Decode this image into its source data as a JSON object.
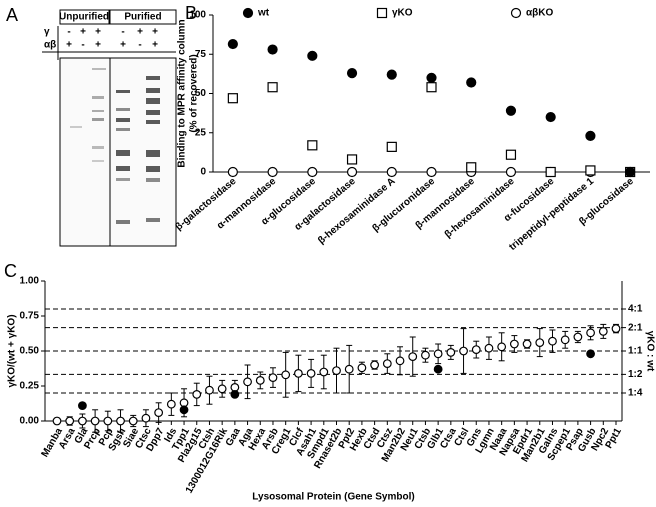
{
  "gel": {
    "label": "A",
    "groups": [
      "Unpurified",
      "Purified"
    ],
    "rows": [
      {
        "label": "γ",
        "signs": [
          "-",
          "+",
          "+",
          "-",
          "+",
          "+"
        ]
      },
      {
        "label": "αβ",
        "signs": [
          "+",
          "-",
          "+",
          "+",
          "-",
          "+"
        ]
      }
    ]
  },
  "chart_data": [
    {
      "type": "scatter",
      "label": "B",
      "ylabel": [
        "Binding to MPR affinity column",
        "(% of recovered)"
      ],
      "categories": [
        "β-galactosidase",
        "α-mannosidase",
        "α-glucosidase",
        "α-galactosidase",
        "β-hexosaminidase A",
        "β-glucuronidase",
        "β-mannosidase",
        "β-hexosaminidase",
        "α-fucosidase",
        "tripeptidyl-peptidase 1",
        "β-glucosidase"
      ],
      "series": [
        {
          "name": "wt",
          "color": "#000000",
          "marker": "circle-filled",
          "values": [
            81.5,
            78,
            74,
            63,
            62,
            60,
            57,
            39,
            35,
            23,
            0
          ]
        },
        {
          "name": "γKO",
          "color": "#000000",
          "marker": "square",
          "values": [
            47,
            54,
            17,
            8,
            16,
            54,
            3,
            11,
            0,
            1,
            0
          ]
        },
        {
          "name": "αβKO",
          "color": "#000000",
          "marker": "circle-open",
          "values": [
            0,
            0,
            0,
            0,
            0,
            0,
            0,
            0,
            0,
            0,
            0
          ]
        }
      ],
      "ylim": [
        0,
        100
      ],
      "yticks": [
        0,
        25,
        50,
        75,
        100
      ],
      "legend": "top"
    },
    {
      "type": "errorbar",
      "label": "C",
      "ylabel": "γKO/(wt + γKO)",
      "y2label": "γKO : wt",
      "xlabel": "Lysosomal Protein (Gene Symbol)",
      "categories": [
        "Manba",
        "Arsa",
        "Gla",
        "Prcp",
        "Pcp",
        "Sgsh",
        "Siae",
        "Ctsc",
        "Dpp7",
        "Ids",
        "Tpp1",
        "Pla2g15",
        "Ctsh",
        "1300012G16Rik",
        "Gaa",
        "Aga",
        "Hexa",
        "Arsb",
        "Creg1",
        "Clcf",
        "Asah1",
        "Smpd1",
        "Rnaset2b",
        "Ppt2",
        "Hexb",
        "Ctsd",
        "Ctsz",
        "Man2b2",
        "Neu1",
        "Ctsb",
        "Glb1",
        "Ctsa",
        "Ctsl",
        "Gns",
        "Lgmn",
        "Naaa",
        "Napsa",
        "Epdr1",
        "Man2b1",
        "Galns",
        "Scpep1",
        "Psap",
        "Gusb",
        "Npc2",
        "Ppt1"
      ],
      "series": [
        {
          "color": "#000000",
          "marker": "circle-open",
          "values": [
            0,
            0,
            0,
            0,
            0,
            0,
            0,
            0.02,
            0.06,
            0.12,
            0.13,
            0.19,
            0.22,
            0.23,
            0.24,
            0.28,
            0.29,
            0.31,
            0.33,
            0.34,
            0.34,
            0.35,
            0.36,
            0.37,
            0.38,
            0.4,
            0.41,
            0.43,
            0.46,
            0.47,
            0.48,
            0.49,
            0.5,
            0.51,
            0.52,
            0.53,
            0.55,
            0.55,
            0.56,
            0.57,
            0.58,
            0.6,
            0.63,
            0.64,
            0.66
          ],
          "errors": [
            0.02,
            0.03,
            0.05,
            0.08,
            0.07,
            0.08,
            0.04,
            0.06,
            0.07,
            0.08,
            0.1,
            0.08,
            0.1,
            0.06,
            0.05,
            0.12,
            0.06,
            0.07,
            0.16,
            0.13,
            0.1,
            0.12,
            0.16,
            0.17,
            0.04,
            0.03,
            0.07,
            0.1,
            0.14,
            0.05,
            0.07,
            0.05,
            0.16,
            0.06,
            0.08,
            0.1,
            0.06,
            0.03,
            0.1,
            0.08,
            0.06,
            0.04,
            0.05,
            0.05,
            0.03
          ]
        },
        {
          "color": "#000000",
          "marker": "circle-filled",
          "values": [
            null,
            null,
            0.11,
            null,
            null,
            null,
            null,
            null,
            null,
            null,
            0.08,
            null,
            null,
            null,
            0.19,
            null,
            null,
            null,
            null,
            null,
            null,
            null,
            null,
            null,
            null,
            null,
            null,
            null,
            null,
            null,
            0.37,
            null,
            null,
            null,
            null,
            null,
            null,
            null,
            null,
            null,
            null,
            null,
            0.48,
            null,
            null
          ]
        }
      ],
      "ylim": [
        0,
        1
      ],
      "yticks": [
        {
          "value": 0,
          "label": "0.00"
        },
        {
          "value": 0.25,
          "label": "0.25"
        },
        {
          "value": 0.5,
          "label": "0.50"
        },
        {
          "value": 0.75,
          "label": "0.75"
        },
        {
          "value": 1,
          "label": "1.00"
        }
      ],
      "y2lim": [
        0,
        1
      ],
      "y2ticks": [
        {
          "value": 0.8,
          "label": "4:1"
        },
        {
          "value": 0.667,
          "label": "2:1"
        },
        {
          "value": 0.5,
          "label": "1:1"
        },
        {
          "value": 0.333,
          "label": "1:2"
        },
        {
          "value": 0.2,
          "label": "1:4"
        }
      ]
    }
  ]
}
